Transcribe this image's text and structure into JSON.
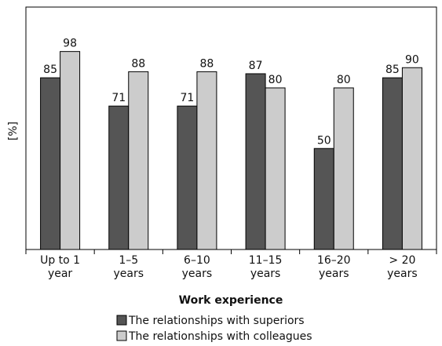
{
  "chart_data": {
    "type": "bar",
    "ylabel": "[%]",
    "xlabel": "Work experience",
    "ylim": [
      0,
      120
    ],
    "categories": [
      [
        "Up to 1",
        "year"
      ],
      [
        "1–5",
        "years"
      ],
      [
        "6–10",
        "years"
      ],
      [
        "11–15",
        "years"
      ],
      [
        "16–20",
        "years"
      ],
      [
        "> 20",
        "years"
      ]
    ],
    "series": [
      {
        "name": "The relationships with superiors",
        "color": "#555555",
        "values": [
          85,
          71,
          71,
          87,
          50,
          85
        ]
      },
      {
        "name": "The relationships with colleagues",
        "color": "#cccccc",
        "values": [
          98,
          88,
          88,
          80,
          80,
          90
        ]
      }
    ],
    "legend_position": "bottom"
  }
}
